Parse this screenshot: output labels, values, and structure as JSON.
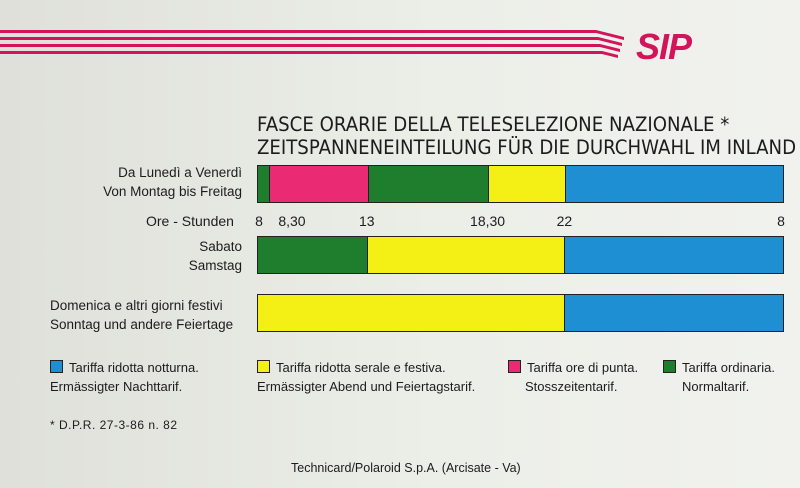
{
  "brand": {
    "logo_text": "SIP",
    "accent_color": "#d4145a"
  },
  "title_line1": "FASCE ORARIE DELLA TELESELEZIONE NAZIONALE *",
  "title_line2": "ZEITSPANNENEINTEILUNG FÜR DIE DURCHWAHL IM INLAND",
  "hours_label": "Ore - Stunden",
  "colors": {
    "blue": "#1e8fd2",
    "pink": "#ea2a72",
    "green": "#1e7e2e",
    "yellow": "#f4ef14"
  },
  "chart_data": {
    "type": "bar",
    "orientation": "horizontal-stacked",
    "x_ticks": [
      {
        "label": "8",
        "hour": 8
      },
      {
        "label": "8,30",
        "hour": 8.5
      },
      {
        "label": "13",
        "hour": 13
      },
      {
        "label": "18,30",
        "hour": 18.5
      },
      {
        "label": "22",
        "hour": 22
      },
      {
        "label": "8",
        "hour": 32
      }
    ],
    "xlim": [
      8,
      32
    ],
    "rows": [
      {
        "label_line1": "Da Lunedì a Venerdì",
        "label_line2": "Von Montag bis Freitag",
        "segments": [
          {
            "start": 8,
            "end": 8.5,
            "tariff": "green"
          },
          {
            "start": 8.5,
            "end": 13,
            "tariff": "pink"
          },
          {
            "start": 13,
            "end": 18.5,
            "tariff": "green"
          },
          {
            "start": 18.5,
            "end": 22,
            "tariff": "yellow"
          },
          {
            "start": 22,
            "end": 32,
            "tariff": "blue"
          }
        ]
      },
      {
        "label_line1": "Sabato",
        "label_line2": "Samstag",
        "segments": [
          {
            "start": 8,
            "end": 13,
            "tariff": "green"
          },
          {
            "start": 13,
            "end": 22,
            "tariff": "yellow"
          },
          {
            "start": 22,
            "end": 32,
            "tariff": "blue"
          }
        ]
      },
      {
        "label_line1": "Domenica e altri giorni festivi",
        "label_line2": "Sonntag und andere Feiertage",
        "segments": [
          {
            "start": 8,
            "end": 22,
            "tariff": "yellow"
          },
          {
            "start": 22,
            "end": 32,
            "tariff": "blue"
          }
        ]
      }
    ],
    "legend": [
      {
        "tariff": "blue",
        "line1": "Tariffa ridotta notturna.",
        "line2": "Ermässigter Nachttarif."
      },
      {
        "tariff": "yellow",
        "line1": "Tariffa ridotta serale e festiva.",
        "line2": "Ermässigter Abend und Feiertagstarif."
      },
      {
        "tariff": "pink",
        "line1": "Tariffa ore di punta.",
        "line2": "Stosszeitentarif."
      },
      {
        "tariff": "green",
        "line1": "Tariffa ordinaria.",
        "line2": "Normaltarif."
      }
    ]
  },
  "footnote": "* D.P.R. 27-3-86 n. 82",
  "credit": "Technicard/Polaroid S.p.A. (Arcisate - Va)"
}
